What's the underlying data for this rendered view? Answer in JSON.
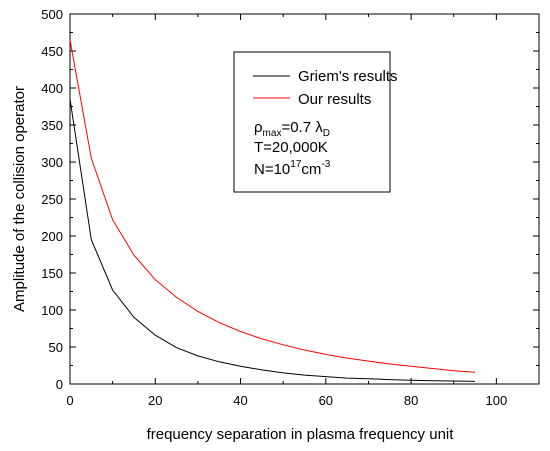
{
  "chart_data": {
    "type": "line",
    "xlabel": "frequency separation in plasma frequency unit",
    "ylabel": "Amplitude of the collision operator",
    "xlim": [
      0,
      110
    ],
    "ylim": [
      0,
      500
    ],
    "xticks": [
      0,
      20,
      40,
      60,
      80,
      100
    ],
    "yticks": [
      0,
      50,
      100,
      150,
      200,
      250,
      300,
      350,
      400,
      450,
      500
    ],
    "grid": false,
    "legend_position": "top-right",
    "series": [
      {
        "name": "Griem's results",
        "color": "#000000",
        "x": [
          0,
          5,
          10,
          15,
          20,
          25,
          30,
          35,
          40,
          45,
          50,
          55,
          60,
          65,
          70,
          75,
          80,
          85,
          90,
          95
        ],
        "y": [
          385,
          195,
          127,
          90,
          66,
          49,
          38,
          30,
          24,
          19,
          15,
          12,
          10,
          8,
          7,
          6,
          5,
          4.5,
          4,
          3.5
        ]
      },
      {
        "name": "Our results",
        "color": "#ff0000",
        "x": [
          0,
          5,
          10,
          15,
          20,
          25,
          30,
          35,
          40,
          45,
          50,
          55,
          60,
          65,
          70,
          75,
          80,
          85,
          90,
          95
        ],
        "y": [
          465,
          305,
          222,
          174,
          141,
          117,
          98,
          83,
          71,
          61,
          53,
          46,
          40,
          35,
          31,
          27,
          24,
          21,
          18,
          16
        ]
      }
    ],
    "annotations": {
      "rho_symbol": "ρ",
      "rho_subscript": "max",
      "rho_value": "=0.7 λ",
      "lambda_subscript": "D",
      "temperature": "T=20,000K",
      "density_prefix": "N=10",
      "density_exponent": "17",
      "density_unit": "cm",
      "density_unit_exponent": "-3"
    }
  }
}
